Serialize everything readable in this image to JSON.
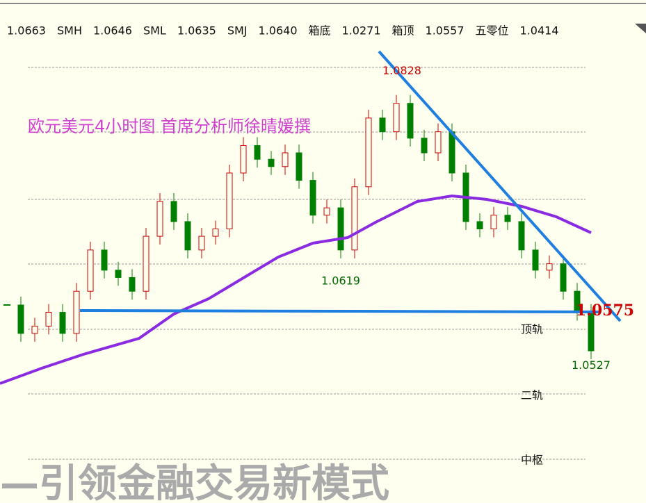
{
  "header": {
    "items": [
      "1.0663",
      "SMH",
      "1.0646",
      "SML",
      "1.0635",
      "SMJ",
      "1.0640",
      "箱底",
      "1.0271",
      "箱顶",
      "1.0557",
      "五零位",
      "1.0414"
    ]
  },
  "chart_data": {
    "type": "candlestick",
    "title": "欧元美元4小时图  首席分析师徐晴媛撰",
    "values": [
      1.0582,
      1.0551,
      1.0559,
      1.0574,
      1.0551,
      1.0597,
      1.0642,
      1.062,
      1.0612,
      1.0597,
      1.0657,
      1.0695,
      1.0673,
      1.0642,
      1.0657,
      1.0665,
      1.0726,
      1.0756,
      1.0741,
      1.0733,
      1.0748,
      1.0718,
      1.068,
      1.0688,
      1.0642,
      1.0711,
      1.0786,
      1.0771,
      1.0802,
      1.0764,
      1.0748,
      1.0771,
      1.0726,
      1.0673,
      1.0665,
      1.068,
      1.0673,
      1.0642,
      1.062,
      1.0627,
      1.0597,
      1.0574,
      1.0532
    ],
    "ylim": [
      1.0366,
      1.0892
    ],
    "up_color": "#cc0000",
    "down_color": "#008000",
    "annotations": [
      {
        "text": "1.0828",
        "value": 1.0828,
        "color": "#cc0000"
      },
      {
        "text": "1.0619",
        "value": 1.0619,
        "color": "#006400"
      },
      {
        "text": "1.0575",
        "value": 1.0575,
        "color": "#cc0000"
      },
      {
        "text": "1.0527",
        "value": 1.0527,
        "color": "#006400"
      }
    ],
    "rail_labels": [
      "顶轨",
      "二轨",
      "中枢"
    ]
  },
  "watermark": "—引领金融交易新模式"
}
